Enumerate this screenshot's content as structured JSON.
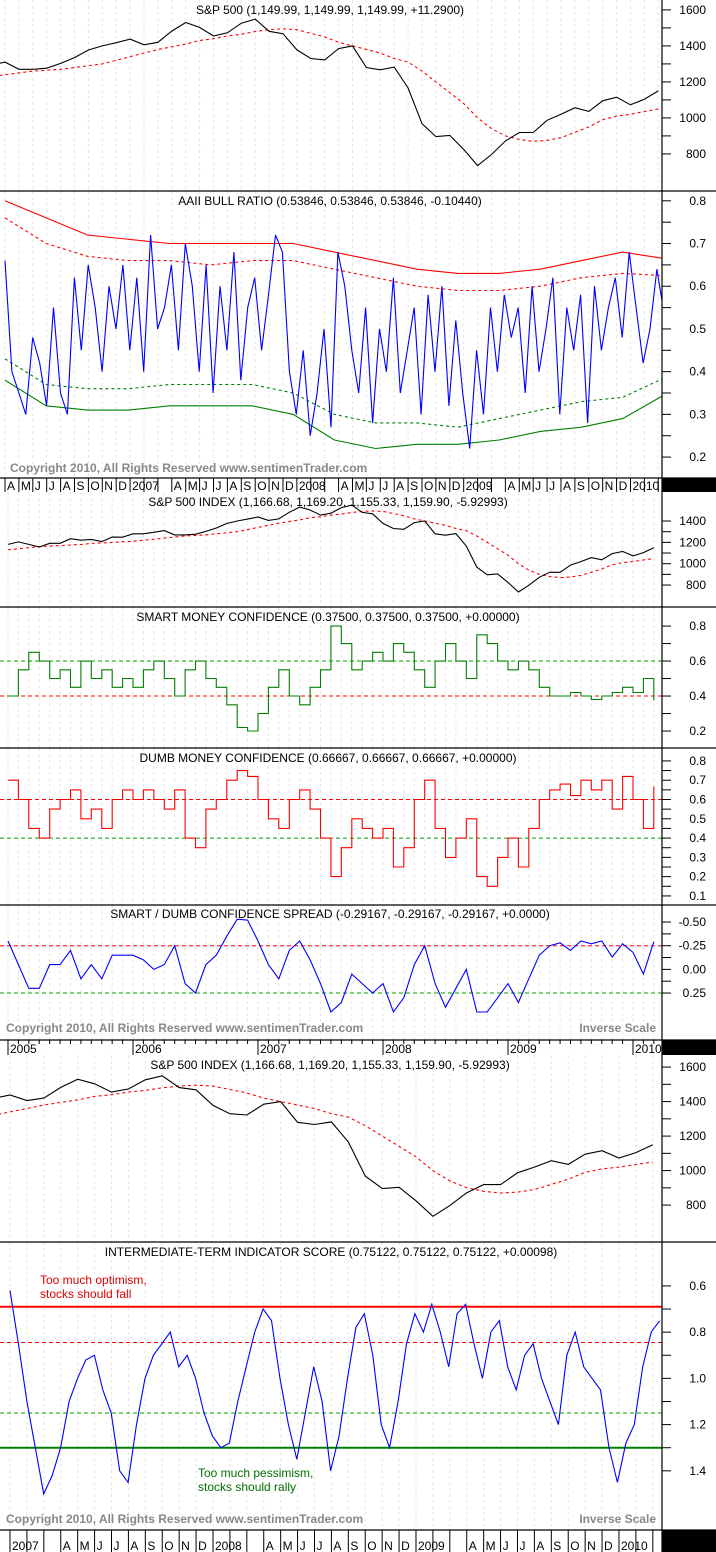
{
  "chart_data": {
    "type": "line",
    "shared": {
      "sp500": {
        "start": 2005.0,
        "end": 2010.1667,
        "values": [
          1181,
          1204,
          1181,
          1156,
          1191,
          1191,
          1234,
          1220,
          1228,
          1207,
          1249,
          1248,
          1280,
          1280,
          1294,
          1310,
          1270,
          1270,
          1276,
          1303,
          1335,
          1377,
          1400,
          1418,
          1438,
          1406,
          1420,
          1482,
          1530,
          1503,
          1455,
          1473,
          1526,
          1549,
          1481,
          1468,
          1378,
          1330,
          1322,
          1385,
          1400,
          1280,
          1267,
          1282,
          1166,
          968,
          896,
          903,
          825,
          735,
          797,
          872,
          919,
          919,
          987,
          1020,
          1057,
          1036,
          1095,
          1115,
          1073,
          1104,
          1150
        ]
      },
      "sp500_ma": {
        "start": 2005.0,
        "end": 2010.1667,
        "values": [
          1130,
          1140,
          1150,
          1160,
          1165,
          1170,
          1175,
          1180,
          1190,
          1195,
          1200,
          1205,
          1210,
          1220,
          1230,
          1240,
          1250,
          1260,
          1265,
          1270,
          1280,
          1290,
          1300,
          1320,
          1340,
          1360,
          1380,
          1395,
          1410,
          1430,
          1440,
          1455,
          1465,
          1480,
          1490,
          1495,
          1490,
          1470,
          1450,
          1420,
          1400,
          1380,
          1360,
          1330,
          1310,
          1260,
          1200,
          1140,
          1080,
          1000,
          940,
          900,
          880,
          870,
          875,
          890,
          920,
          950,
          990,
          1010,
          1020,
          1035,
          1050
        ]
      },
      "aaii": {
        "start": 2006.25,
        "end": 2010.2,
        "values": [
          0.66,
          0.4,
          0.35,
          0.3,
          0.48,
          0.42,
          0.32,
          0.55,
          0.35,
          0.3,
          0.62,
          0.45,
          0.65,
          0.55,
          0.4,
          0.6,
          0.5,
          0.65,
          0.45,
          0.62,
          0.4,
          0.72,
          0.5,
          0.55,
          0.65,
          0.45,
          0.7,
          0.6,
          0.4,
          0.65,
          0.35,
          0.6,
          0.45,
          0.68,
          0.38,
          0.55,
          0.62,
          0.45,
          0.58,
          0.72,
          0.68,
          0.4,
          0.3,
          0.45,
          0.25,
          0.35,
          0.5,
          0.27,
          0.68,
          0.6,
          0.45,
          0.35,
          0.55,
          0.28,
          0.5,
          0.4,
          0.62,
          0.35,
          0.45,
          0.55,
          0.3,
          0.58,
          0.4,
          0.6,
          0.32,
          0.52,
          0.35,
          0.22,
          0.45,
          0.3,
          0.55,
          0.4,
          0.58,
          0.48,
          0.55,
          0.35,
          0.6,
          0.4,
          0.5,
          0.62,
          0.3,
          0.55,
          0.45,
          0.58,
          0.28,
          0.6,
          0.45,
          0.55,
          0.62,
          0.48,
          0.68,
          0.55,
          0.42,
          0.5,
          0.64,
          0.538
        ]
      },
      "aaii_upper2": {
        "start": 2006.25,
        "end": 2010.2,
        "values": [
          0.8,
          0.76,
          0.72,
          0.71,
          0.7,
          0.7,
          0.7,
          0.7,
          0.68,
          0.66,
          0.64,
          0.63,
          0.63,
          0.64,
          0.66,
          0.68,
          0.665
        ]
      },
      "aaii_upper1": {
        "start": 2006.25,
        "end": 2010.2,
        "values": [
          0.76,
          0.7,
          0.67,
          0.66,
          0.66,
          0.65,
          0.66,
          0.66,
          0.64,
          0.62,
          0.6,
          0.59,
          0.59,
          0.6,
          0.62,
          0.63,
          0.625
        ]
      },
      "aaii_lower1": {
        "start": 2006.25,
        "end": 2010.2,
        "values": [
          0.43,
          0.37,
          0.36,
          0.36,
          0.37,
          0.37,
          0.37,
          0.35,
          0.3,
          0.28,
          0.28,
          0.27,
          0.29,
          0.31,
          0.33,
          0.34,
          0.385
        ]
      },
      "aaii_lower2": {
        "start": 2006.25,
        "end": 2010.2,
        "values": [
          0.38,
          0.32,
          0.31,
          0.31,
          0.32,
          0.32,
          0.32,
          0.3,
          0.24,
          0.22,
          0.23,
          0.23,
          0.24,
          0.26,
          0.27,
          0.29,
          0.345
        ]
      },
      "smart": {
        "start": 2005.0,
        "end": 2010.1667,
        "values": [
          0.4,
          0.55,
          0.65,
          0.6,
          0.5,
          0.55,
          0.45,
          0.6,
          0.5,
          0.55,
          0.45,
          0.5,
          0.45,
          0.55,
          0.6,
          0.5,
          0.4,
          0.55,
          0.6,
          0.5,
          0.45,
          0.35,
          0.22,
          0.2,
          0.3,
          0.45,
          0.55,
          0.4,
          0.35,
          0.45,
          0.55,
          0.8,
          0.7,
          0.55,
          0.6,
          0.65,
          0.6,
          0.7,
          0.65,
          0.55,
          0.45,
          0.6,
          0.7,
          0.6,
          0.5,
          0.75,
          0.7,
          0.6,
          0.55,
          0.6,
          0.55,
          0.45,
          0.4,
          0.4,
          0.42,
          0.4,
          0.38,
          0.4,
          0.42,
          0.45,
          0.42,
          0.5,
          0.375
        ]
      },
      "dumb": {
        "start": 2005.0,
        "end": 2010.1667,
        "values": [
          0.7,
          0.6,
          0.45,
          0.4,
          0.55,
          0.6,
          0.65,
          0.5,
          0.55,
          0.45,
          0.6,
          0.65,
          0.6,
          0.65,
          0.6,
          0.55,
          0.65,
          0.4,
          0.35,
          0.55,
          0.6,
          0.7,
          0.75,
          0.72,
          0.6,
          0.5,
          0.45,
          0.6,
          0.65,
          0.55,
          0.4,
          0.2,
          0.35,
          0.5,
          0.45,
          0.4,
          0.45,
          0.25,
          0.35,
          0.6,
          0.7,
          0.45,
          0.3,
          0.4,
          0.5,
          0.2,
          0.15,
          0.3,
          0.4,
          0.25,
          0.45,
          0.6,
          0.65,
          0.68,
          0.62,
          0.7,
          0.65,
          0.7,
          0.55,
          0.72,
          0.6,
          0.45,
          0.667
        ]
      },
      "spread": {
        "start": 2005.0,
        "end": 2010.1667,
        "values": [
          -0.3,
          -0.05,
          0.2,
          0.2,
          -0.05,
          -0.05,
          -0.2,
          0.1,
          -0.05,
          0.1,
          -0.15,
          -0.15,
          -0.15,
          -0.1,
          0.0,
          -0.05,
          -0.25,
          0.15,
          0.25,
          -0.05,
          -0.15,
          -0.35,
          -0.53,
          -0.52,
          -0.3,
          -0.05,
          0.1,
          -0.2,
          -0.3,
          -0.1,
          0.15,
          0.45,
          0.35,
          0.05,
          0.15,
          0.25,
          0.15,
          0.45,
          0.3,
          -0.05,
          -0.25,
          0.15,
          0.4,
          0.2,
          0.0,
          0.45,
          0.45,
          0.3,
          0.15,
          0.35,
          0.1,
          -0.15,
          -0.25,
          -0.28,
          -0.2,
          -0.3,
          -0.27,
          -0.3,
          -0.13,
          -0.27,
          -0.18,
          0.05,
          -0.292
        ]
      },
      "itis": {
        "start": 2007.0,
        "end": 2010.2,
        "values": [
          0.62,
          0.85,
          1.1,
          1.3,
          1.5,
          1.42,
          1.3,
          1.1,
          1.0,
          0.92,
          0.9,
          1.05,
          1.15,
          1.4,
          1.45,
          1.2,
          1.0,
          0.9,
          0.85,
          0.8,
          0.95,
          0.9,
          1.0,
          1.15,
          1.25,
          1.3,
          1.28,
          1.1,
          0.95,
          0.8,
          0.7,
          0.75,
          1.0,
          1.2,
          1.35,
          1.15,
          0.95,
          1.1,
          1.4,
          1.25,
          1.0,
          0.78,
          0.72,
          0.9,
          1.2,
          1.3,
          1.1,
          0.85,
          0.72,
          0.8,
          0.68,
          0.8,
          0.95,
          0.72,
          0.68,
          0.85,
          1.0,
          0.8,
          0.75,
          0.95,
          1.05,
          0.9,
          0.85,
          1.0,
          1.1,
          1.2,
          0.9,
          0.8,
          0.95,
          1.0,
          1.05,
          1.3,
          1.45,
          1.28,
          1.2,
          0.95,
          0.8,
          0.751
        ]
      }
    },
    "panels": [
      {
        "title": "S&P 500 (1,149.99, 1,149.99, 1,149.99, +11.2900)",
        "time_axis": "A",
        "y_top": 1655,
        "y_bottom": 594,
        "ticks": [
          {
            "v": 1600,
            "label": "1600"
          },
          {
            "v": 1400,
            "label": "1400"
          },
          {
            "v": 1200,
            "label": "1200"
          },
          {
            "v": 1000,
            "label": "1000"
          },
          {
            "v": 800,
            "label": "800"
          }
        ],
        "series": [
          {
            "ref": "sp500_ma",
            "color": "#ff0000",
            "dash": true
          },
          {
            "ref": "sp500",
            "color": "#000000"
          }
        ],
        "hlines": []
      },
      {
        "title": "AAII BULL RATIO (0.53846, 0.53846, 0.53846, -0.10440)",
        "time_axis": "A",
        "y_top": 0.823,
        "y_bottom": 0.151,
        "ticks": [
          {
            "v": 0.8,
            "label": "0.8"
          },
          {
            "v": 0.7,
            "label": "0.7"
          },
          {
            "v": 0.6,
            "label": "0.6"
          },
          {
            "v": 0.5,
            "label": "0.5"
          },
          {
            "v": 0.4,
            "label": "0.4"
          },
          {
            "v": 0.3,
            "label": "0.3"
          },
          {
            "v": 0.2,
            "label": "0.2"
          }
        ],
        "series": [
          {
            "ref": "aaii_upper2",
            "color": "#ff0000"
          },
          {
            "ref": "aaii_upper1",
            "color": "#ff0000",
            "dash": true
          },
          {
            "ref": "aaii_lower1",
            "color": "#008000",
            "dash": true
          },
          {
            "ref": "aaii_lower2",
            "color": "#008000"
          },
          {
            "ref": "aaii",
            "color": "#0000ff"
          }
        ],
        "hlines": []
      },
      {
        "title": "S&P 500 INDEX (1,166.68, 1,169.20, 1,155.33, 1,159.90, -5.92993)",
        "time_axis": "B",
        "y_top": 1672,
        "y_bottom": 594,
        "ticks": [
          {
            "v": 1400,
            "label": "1400"
          },
          {
            "v": 1200,
            "label": "1200"
          },
          {
            "v": 1000,
            "label": "1000"
          },
          {
            "v": 800,
            "label": "800"
          }
        ],
        "series": [
          {
            "ref": "sp500_ma",
            "color": "#ff0000",
            "dash": true
          },
          {
            "ref": "sp500",
            "color": "#000000"
          }
        ],
        "hlines": []
      },
      {
        "title": "SMART MONEY CONFIDENCE (0.37500, 0.37500, 0.37500, +0.00000)",
        "time_axis": "B",
        "y_top": 0.909,
        "y_bottom": 0.103,
        "ticks": [
          {
            "v": 0.8,
            "label": "0.8"
          },
          {
            "v": 0.6,
            "label": "0.6"
          },
          {
            "v": 0.4,
            "label": "0.4"
          },
          {
            "v": 0.2,
            "label": "0.2"
          }
        ],
        "series": [
          {
            "ref": "smart",
            "color": "#008000",
            "step": true
          }
        ],
        "hlines": [
          {
            "v": 0.6,
            "color": "#00a000",
            "dash": true
          },
          {
            "v": 0.4,
            "color": "#ff0000",
            "dash": true
          }
        ]
      },
      {
        "title": "DUMB MONEY CONFIDENCE (0.66667, 0.66667, 0.66667, +0.00000)",
        "time_axis": "B",
        "y_top": 0.867,
        "y_bottom": 0.053,
        "ticks": [
          {
            "v": 0.8,
            "label": "0.8"
          },
          {
            "v": 0.7,
            "label": "0.7"
          },
          {
            "v": 0.6,
            "label": "0.6"
          },
          {
            "v": 0.5,
            "label": "0.5"
          },
          {
            "v": 0.4,
            "label": "0.4"
          },
          {
            "v": 0.3,
            "label": "0.3"
          },
          {
            "v": 0.2,
            "label": "0.2"
          },
          {
            "v": 0.1,
            "label": "0.1"
          }
        ],
        "series": [
          {
            "ref": "dumb",
            "color": "#ff0000",
            "step": true
          }
        ],
        "hlines": [
          {
            "v": 0.6,
            "color": "#ff0000",
            "dash": true
          },
          {
            "v": 0.4,
            "color": "#00a000",
            "dash": true
          }
        ]
      },
      {
        "title": "SMART / DUMB CONFIDENCE SPREAD (-0.29167, -0.29167, -0.29167, +0.0000)",
        "time_axis": "B",
        "y_top": -0.68,
        "y_bottom": 0.746,
        "ticks": [
          {
            "v": -0.5,
            "label": "-0.50"
          },
          {
            "v": -0.25,
            "label": "-0.25"
          },
          {
            "v": 0,
            "label": "0.00"
          },
          {
            "v": 0.25,
            "label": "0.25"
          }
        ],
        "series": [
          {
            "ref": "spread",
            "color": "#0000ff"
          }
        ],
        "hlines": [
          {
            "v": -0.25,
            "color": "#ff0000",
            "dash": true
          },
          {
            "v": 0.25,
            "color": "#00a000",
            "dash": true
          }
        ]
      },
      {
        "title": "S&P 500 INDEX (1,166.68, 1,169.20, 1,155.33, 1,159.90, -5.92993)",
        "time_axis": "C",
        "y_top": 1670,
        "y_bottom": 586,
        "ticks": [
          {
            "v": 1600,
            "label": "1600"
          },
          {
            "v": 1400,
            "label": "1400"
          },
          {
            "v": 1200,
            "label": "1200"
          },
          {
            "v": 1000,
            "label": "1000"
          },
          {
            "v": 800,
            "label": "800"
          }
        ],
        "series": [
          {
            "ref": "sp500_ma",
            "color": "#ff0000",
            "dash": true
          },
          {
            "ref": "sp500",
            "color": "#000000"
          }
        ],
        "hlines": []
      },
      {
        "title": "INTERMEDIATE-TERM INDICATOR SCORE (0.75122, 0.75122, 0.75122, +0.00098)",
        "time_axis": "C",
        "y_top": 0.41,
        "y_bottom": 1.656,
        "ticks": [
          {
            "v": 0.6,
            "label": "0.6"
          },
          {
            "v": 0.8,
            "label": "0.8"
          },
          {
            "v": 1.0,
            "label": "1.0"
          },
          {
            "v": 1.2,
            "label": "1.2"
          },
          {
            "v": 1.4,
            "label": "1.4"
          }
        ],
        "series": [
          {
            "ref": "itis",
            "color": "#0000ff"
          }
        ],
        "hlines": [
          {
            "v": 0.69,
            "color": "#ff0000",
            "width": 2
          },
          {
            "v": 0.845,
            "color": "#ff0000",
            "dash": true
          },
          {
            "v": 1.15,
            "color": "#00a000",
            "dash": true
          },
          {
            "v": 1.3,
            "color": "#008000",
            "width": 2
          }
        ]
      }
    ],
    "time_axes": {
      "A": {
        "start": 2006.25,
        "step": 0.08333,
        "labels": [
          "A",
          "M",
          "J",
          "J",
          "A",
          "S",
          "O",
          "N",
          "D",
          "2007",
          "",
          "",
          "A",
          "M",
          "J",
          "J",
          "A",
          "S",
          "O",
          "N",
          "D",
          "2008",
          "",
          "",
          "A",
          "M",
          "J",
          "J",
          "A",
          "S",
          "O",
          "N",
          "D",
          "2009",
          "",
          "",
          "A",
          "M",
          "J",
          "J",
          "A",
          "S",
          "O",
          "N",
          "D",
          "2010",
          "",
          "",
          "A"
        ]
      },
      "B": {
        "start": 2005.0,
        "step": 1,
        "labels": [
          "2005",
          "2006",
          "2007",
          "2008",
          "2009",
          "2010"
        ]
      },
      "C": {
        "start": 2007.0,
        "step": 0.08333,
        "labels": [
          "2007",
          "",
          "",
          "A",
          "M",
          "J",
          "J",
          "A",
          "S",
          "O",
          "N",
          "D",
          "2008",
          "",
          "",
          "A",
          "M",
          "J",
          "J",
          "A",
          "S",
          "O",
          "N",
          "D",
          "2009",
          "",
          "",
          "A",
          "M",
          "J",
          "J",
          "A",
          "S",
          "O",
          "N",
          "D",
          "2010",
          "",
          ""
        ]
      }
    }
  },
  "annotations": {
    "copyright": "Copyright 2010, All Rights Reserved  www.sentimenTrader.com",
    "inverse_scale": "Inverse Scale",
    "optimism_line1": "Too much optimism,",
    "optimism_line2": "stocks should fall",
    "pessimism_line1": "Too much pessimism,",
    "pessimism_line2": "stocks should rally"
  }
}
